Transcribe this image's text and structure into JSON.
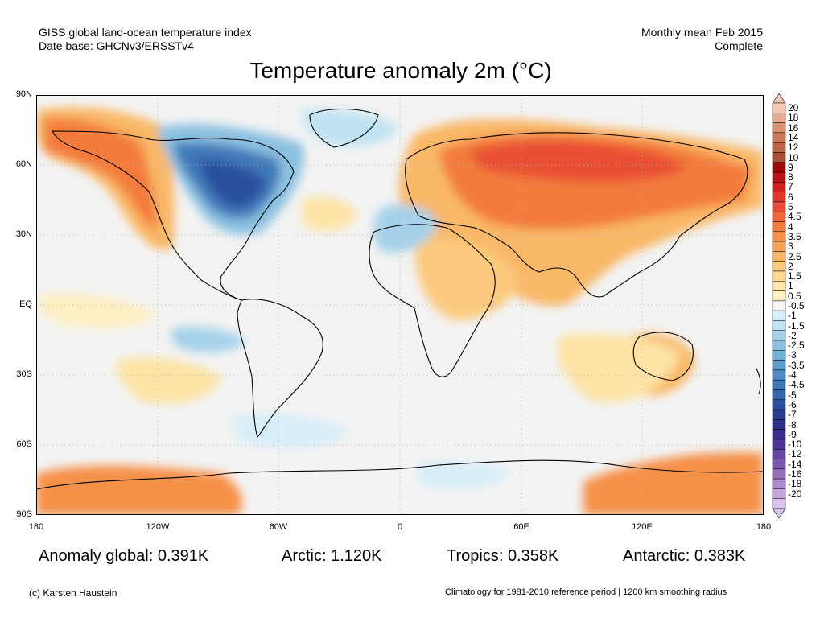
{
  "header": {
    "left_line1": "GISS global land-ocean temperature index",
    "left_line2": "Date base: GHCNv3/ERSSTv4",
    "right_line1": "Monthly mean Feb 2015",
    "right_line2": "Complete"
  },
  "title": "Temperature anomaly 2m (°C)",
  "map": {
    "lat_ticks": [
      "90N",
      "60N",
      "30N",
      "EQ",
      "30S",
      "60S",
      "90S"
    ],
    "lon_ticks": [
      "180",
      "120W",
      "60W",
      "0",
      "60E",
      "120E",
      "180"
    ]
  },
  "colorbar": {
    "labels": [
      "20",
      "18",
      "16",
      "14",
      "12",
      "10",
      "9",
      "8",
      "7",
      "6",
      "5",
      "4.5",
      "4",
      "3.5",
      "3",
      "2.5",
      "2",
      "1.5",
      "1",
      "0.5",
      "-0.5",
      "-1",
      "-1.5",
      "-2",
      "-2.5",
      "-3",
      "-3.5",
      "-4",
      "-4.5",
      "-5",
      "-6",
      "-7",
      "-8",
      "-9",
      "-10",
      "-12",
      "-14",
      "-16",
      "-18",
      "-20"
    ],
    "colors": [
      "#f3c8b4",
      "#e8ad92",
      "#dc9474",
      "#cd7b58",
      "#bd6546",
      "#aa4f38",
      "#9a0a0a",
      "#b81313",
      "#d0221d",
      "#df3829",
      "#e84f33",
      "#ef6638",
      "#f37c3e",
      "#f69148",
      "#f8a555",
      "#f9b868",
      "#fbc97e",
      "#fcd891",
      "#fde4a6",
      "#fdefc2",
      "#f3f3f3",
      "#d8eef8",
      "#c0e2f2",
      "#a5d1ea",
      "#8cc1e1",
      "#74b1d8",
      "#5f9fcf",
      "#4d8cc4",
      "#3f79b8",
      "#3565ac",
      "#2c509d",
      "#283d8e",
      "#2b2f87",
      "#3a2b8e",
      "#4d3496",
      "#6443a2",
      "#7d57b1",
      "#9770c0",
      "#b08ad0",
      "#c8a6e0",
      "#dcc3ed"
    ]
  },
  "stats": {
    "global": "Anomaly global: 0.391K",
    "arctic": "Arctic: 1.120K",
    "tropics": "Tropics: 0.358K",
    "antarctic": "Antarctic: 0.383K"
  },
  "footer": {
    "left": "(c) Karsten Haustein",
    "right": "Climatology for 1981-2010 reference period | 1200 km smoothing radius"
  }
}
